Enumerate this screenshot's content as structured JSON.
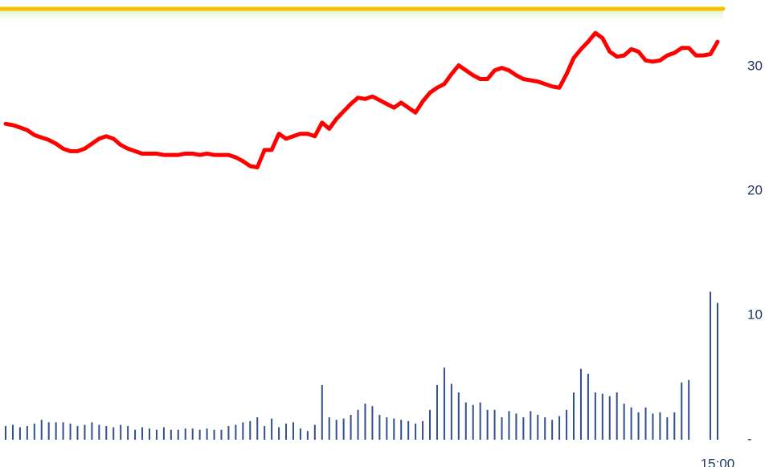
{
  "chart_data": {
    "type": "line",
    "categories": [
      null,
      null,
      null,
      null,
      null,
      null,
      null,
      null,
      null,
      null,
      null,
      null,
      null,
      null,
      null,
      null,
      null,
      null,
      null,
      null,
      null,
      null,
      null,
      null,
      null,
      null,
      null,
      null,
      null,
      null,
      null,
      null,
      null,
      null,
      null,
      null,
      null,
      null,
      null,
      null,
      null,
      null,
      null,
      null,
      null,
      null,
      null,
      null,
      null,
      null,
      null,
      null,
      null,
      null,
      null,
      null,
      null,
      null,
      null,
      null,
      null,
      null,
      null,
      null,
      null,
      null,
      null,
      null,
      null,
      null,
      null,
      null,
      null,
      null,
      null,
      null,
      null,
      null,
      null,
      null,
      null,
      null,
      null,
      null,
      null,
      null,
      null,
      null,
      null,
      null,
      null,
      null,
      null,
      null,
      null,
      null,
      null,
      null,
      null,
      "15:00"
    ],
    "series": [
      {
        "type": "line",
        "color": "#ff0000",
        "values": [
          25.4,
          25.3,
          25.1,
          24.9,
          24.5,
          24.3,
          24.1,
          23.8,
          23.4,
          23.2,
          23.2,
          23.4,
          23.8,
          24.2,
          24.4,
          24.2,
          23.7,
          23.4,
          23.2,
          23.0,
          23.0,
          23.0,
          22.9,
          22.9,
          22.9,
          23.0,
          23.0,
          22.9,
          23.0,
          22.9,
          22.9,
          22.9,
          22.7,
          22.4,
          22.0,
          21.9,
          23.3,
          23.3,
          24.6,
          24.2,
          24.4,
          24.6,
          24.6,
          24.4,
          25.5,
          25.0,
          25.8,
          26.4,
          27.0,
          27.5,
          27.4,
          27.6,
          27.3,
          27.0,
          26.7,
          27.1,
          26.7,
          26.3,
          27.2,
          27.9,
          28.3,
          28.6,
          29.4,
          30.1,
          29.7,
          29.3,
          29.0,
          29.0,
          29.7,
          29.9,
          29.7,
          29.3,
          29.0,
          28.9,
          28.8,
          28.6,
          28.4,
          28.3,
          29.4,
          30.7,
          31.4,
          32.0,
          32.7,
          32.3,
          31.2,
          30.8,
          30.9,
          31.4,
          31.2,
          30.5,
          30.4,
          30.5,
          30.9,
          31.1,
          31.5,
          31.5,
          30.9,
          30.9,
          31.0,
          32.0
        ]
      },
      {
        "type": "bar",
        "color": "#2f4f8f",
        "values": [
          1.1,
          1.2,
          1.0,
          1.1,
          1.3,
          1.6,
          1.4,
          1.4,
          1.4,
          1.3,
          1.1,
          1.2,
          1.4,
          1.2,
          1.1,
          1.0,
          1.2,
          1.1,
          0.8,
          1.0,
          0.9,
          0.8,
          1.0,
          0.8,
          0.8,
          0.9,
          0.9,
          0.8,
          0.9,
          0.8,
          0.8,
          1.1,
          1.2,
          1.4,
          1.5,
          1.8,
          1.1,
          1.7,
          1.0,
          1.3,
          1.4,
          0.9,
          0.7,
          1.2,
          4.4,
          1.8,
          1.6,
          1.7,
          2.0,
          2.4,
          2.9,
          2.7,
          2.0,
          1.8,
          1.7,
          1.6,
          1.5,
          1.3,
          1.5,
          2.4,
          4.4,
          5.8,
          4.5,
          3.8,
          3.0,
          2.8,
          3.0,
          2.4,
          2.4,
          1.8,
          2.3,
          2.1,
          1.8,
          2.3,
          2.0,
          1.8,
          1.6,
          1.9,
          2.4,
          3.8,
          5.7,
          5.3,
          3.8,
          3.7,
          3.5,
          3.8,
          2.9,
          2.6,
          2.2,
          2.6,
          2.1,
          2.2,
          1.8,
          2.2,
          4.6,
          4.8,
          0,
          0,
          11.9,
          11.0
        ]
      }
    ],
    "ylim": [
      0,
      35
    ],
    "yticks": [
      {
        "value": 0,
        "label": "-"
      },
      10,
      20,
      30
    ]
  }
}
